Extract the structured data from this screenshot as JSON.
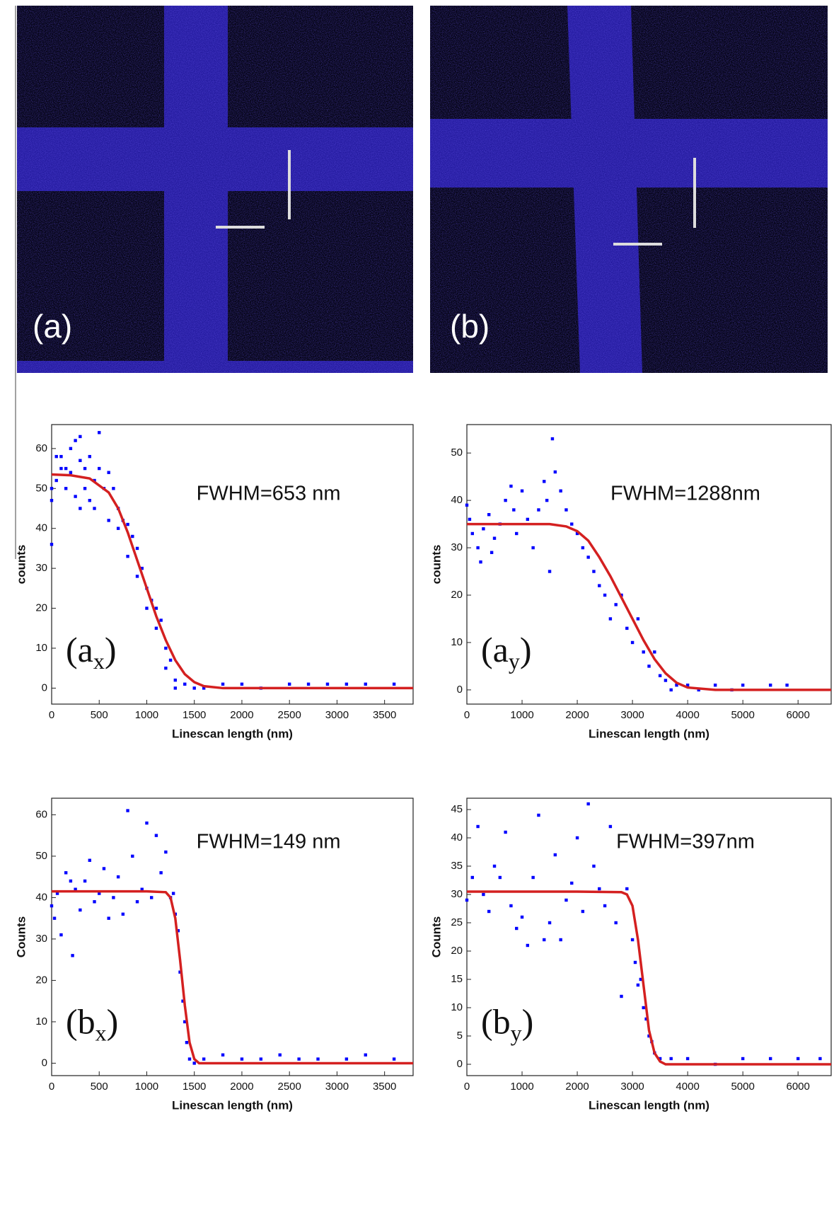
{
  "panels": [
    {
      "label": "(a)"
    },
    {
      "label": "(b)"
    }
  ],
  "chart_data": [
    {
      "type": "scatter",
      "annotation": "FWHM=653 nm",
      "panel_label": [
        "(a",
        "x",
        ")"
      ],
      "x_label": "Linescan length (nm)",
      "y_label": "counts",
      "xlim": [
        0,
        3800
      ],
      "ylim": [
        -4,
        66
      ],
      "xticks": [
        0,
        500,
        1000,
        1500,
        2000,
        2500,
        3000,
        3500
      ],
      "yticks": [
        0,
        10,
        20,
        30,
        40,
        50,
        60
      ],
      "series": [
        {
          "type": "scatter",
          "color": "#0000ff",
          "x": [
            0,
            0,
            0,
            50,
            50,
            100,
            100,
            150,
            150,
            200,
            200,
            250,
            250,
            300,
            300,
            300,
            350,
            350,
            400,
            400,
            450,
            450,
            500,
            500,
            550,
            600,
            600,
            650,
            700,
            700,
            750,
            800,
            800,
            850,
            900,
            900,
            950,
            1000,
            1000,
            1050,
            1100,
            1100,
            1150,
            1200,
            1200,
            1250,
            1300,
            1300,
            1400,
            1500,
            1600,
            1800,
            2000,
            2200,
            2500,
            2700,
            2900,
            3100,
            3300,
            3600
          ],
          "values": [
            47,
            50,
            36,
            58,
            52,
            58,
            55,
            55,
            50,
            60,
            54,
            62,
            48,
            63,
            57,
            45,
            55,
            50,
            58,
            47,
            52,
            45,
            64,
            55,
            50,
            54,
            42,
            50,
            45,
            40,
            42,
            41,
            33,
            38,
            35,
            28,
            30,
            25,
            20,
            22,
            20,
            15,
            17,
            10,
            5,
            7,
            2,
            0,
            1,
            0,
            0,
            1,
            1,
            0,
            1,
            1,
            1,
            1,
            1,
            1
          ]
        },
        {
          "type": "line",
          "color": "#d42020",
          "x": [
            0,
            200,
            400,
            600,
            700,
            800,
            900,
            1000,
            1100,
            1200,
            1300,
            1400,
            1500,
            1600,
            1800,
            2200,
            3000,
            3800
          ],
          "values": [
            53.5,
            53.3,
            52.5,
            49,
            45,
            39,
            32,
            25,
            18,
            12,
            7,
            3.5,
            1.5,
            0.5,
            0,
            0,
            0,
            0
          ]
        }
      ]
    },
    {
      "type": "scatter",
      "annotation": "FWHM=1288nm",
      "panel_label": [
        "(a",
        "y",
        ")"
      ],
      "x_label": "Linescan length (nm)",
      "y_label": "counts",
      "xlim": [
        0,
        6600
      ],
      "ylim": [
        -3,
        56
      ],
      "xticks": [
        0,
        1000,
        2000,
        3000,
        4000,
        5000,
        6000
      ],
      "yticks": [
        0,
        10,
        20,
        30,
        40,
        50
      ],
      "series": [
        {
          "type": "scatter",
          "color": "#0000ff",
          "x": [
            0,
            50,
            100,
            200,
            250,
            300,
            400,
            450,
            500,
            600,
            700,
            800,
            850,
            900,
            1000,
            1100,
            1200,
            1300,
            1400,
            1450,
            1500,
            1550,
            1600,
            1700,
            1800,
            1900,
            2000,
            2100,
            2200,
            2300,
            2400,
            2500,
            2600,
            2700,
            2800,
            2900,
            3000,
            3100,
            3200,
            3300,
            3400,
            3500,
            3600,
            3700,
            3800,
            4000,
            4200,
            4500,
            4800,
            5000,
            5500,
            5800
          ],
          "values": [
            39,
            36,
            33,
            30,
            27,
            34,
            37,
            29,
            32,
            35,
            40,
            43,
            38,
            33,
            42,
            36,
            30,
            38,
            44,
            40,
            25,
            53,
            46,
            42,
            38,
            35,
            33,
            30,
            28,
            25,
            22,
            20,
            15,
            18,
            20,
            13,
            10,
            15,
            8,
            5,
            8,
            3,
            2,
            0,
            1,
            1,
            0,
            1,
            0,
            1,
            1,
            1
          ]
        },
        {
          "type": "line",
          "color": "#d42020",
          "x": [
            0,
            500,
            1000,
            1500,
            1800,
            2000,
            2200,
            2400,
            2600,
            2800,
            3000,
            3200,
            3400,
            3600,
            3800,
            4000,
            4500,
            5000,
            6600
          ],
          "values": [
            35,
            35,
            35,
            35,
            34.5,
            33.5,
            31.5,
            28,
            24,
            19.5,
            15,
            10.5,
            6.5,
            3.5,
            1.5,
            0.5,
            0,
            0,
            0
          ]
        }
      ]
    },
    {
      "type": "scatter",
      "annotation": "FWHM=149 nm",
      "panel_label": [
        "(b",
        "x",
        ")"
      ],
      "x_label": "Linescan length (nm)",
      "y_label": "Counts",
      "xlim": [
        0,
        3800
      ],
      "ylim": [
        -3,
        64
      ],
      "xticks": [
        0,
        500,
        1000,
        1500,
        2000,
        2500,
        3000,
        3500
      ],
      "yticks": [
        0,
        10,
        20,
        30,
        40,
        50,
        60
      ],
      "series": [
        {
          "type": "scatter",
          "color": "#0000ff",
          "x": [
            0,
            30,
            60,
            100,
            150,
            200,
            220,
            250,
            300,
            350,
            400,
            450,
            500,
            550,
            600,
            650,
            700,
            750,
            800,
            850,
            900,
            950,
            1000,
            1050,
            1100,
            1150,
            1200,
            1250,
            1280,
            1300,
            1330,
            1350,
            1380,
            1400,
            1420,
            1450,
            1500,
            1600,
            1800,
            2000,
            2200,
            2400,
            2600,
            2800,
            3100,
            3300,
            3600
          ],
          "values": [
            38,
            35,
            41,
            31,
            46,
            44,
            26,
            42,
            37,
            44,
            49,
            39,
            41,
            47,
            35,
            40,
            45,
            36,
            61,
            50,
            39,
            42,
            58,
            40,
            55,
            46,
            51,
            40,
            41,
            36,
            32,
            22,
            15,
            10,
            5,
            1,
            0,
            1,
            2,
            1,
            1,
            2,
            1,
            1,
            1,
            2,
            1
          ]
        },
        {
          "type": "line",
          "color": "#d42020",
          "x": [
            0,
            500,
            1000,
            1200,
            1250,
            1300,
            1350,
            1400,
            1450,
            1500,
            1550,
            1600,
            3800
          ],
          "values": [
            41.5,
            41.5,
            41.5,
            41.3,
            40,
            35,
            25,
            14,
            5,
            1,
            0,
            0,
            0
          ]
        }
      ]
    },
    {
      "type": "scatter",
      "annotation": "FWHM=397nm",
      "panel_label": [
        "(b",
        "y",
        ")"
      ],
      "x_label": "Linescan length (nm)",
      "y_label": "Counts",
      "xlim": [
        0,
        6600
      ],
      "ylim": [
        -2,
        47
      ],
      "xticks": [
        0,
        1000,
        2000,
        3000,
        4000,
        5000,
        6000
      ],
      "yticks": [
        0,
        5,
        10,
        15,
        20,
        25,
        30,
        35,
        40,
        45
      ],
      "series": [
        {
          "type": "scatter",
          "color": "#0000ff",
          "x": [
            0,
            100,
            200,
            300,
            400,
            500,
            600,
            700,
            800,
            900,
            1000,
            1100,
            1200,
            1300,
            1400,
            1500,
            1600,
            1700,
            1800,
            1900,
            2000,
            2100,
            2200,
            2300,
            2400,
            2500,
            2600,
            2700,
            2800,
            2900,
            3000,
            3050,
            3100,
            3150,
            3200,
            3250,
            3300,
            3350,
            3400,
            3500,
            3700,
            4000,
            4500,
            5000,
            5500,
            6000,
            6400
          ],
          "values": [
            29,
            33,
            42,
            30,
            27,
            35,
            33,
            41,
            28,
            24,
            26,
            21,
            33,
            44,
            22,
            25,
            37,
            22,
            29,
            32,
            40,
            27,
            46,
            35,
            31,
            28,
            42,
            25,
            12,
            31,
            22,
            18,
            14,
            15,
            10,
            8,
            5,
            4,
            2,
            1,
            1,
            1,
            0,
            1,
            1,
            1,
            1
          ]
        },
        {
          "type": "line",
          "color": "#d42020",
          "x": [
            0,
            1000,
            2000,
            2800,
            2900,
            3000,
            3100,
            3200,
            3300,
            3400,
            3500,
            3600,
            6600
          ],
          "values": [
            30.5,
            30.5,
            30.5,
            30.4,
            30,
            28,
            22,
            14,
            6,
            2,
            0.5,
            0,
            0
          ]
        }
      ]
    }
  ]
}
